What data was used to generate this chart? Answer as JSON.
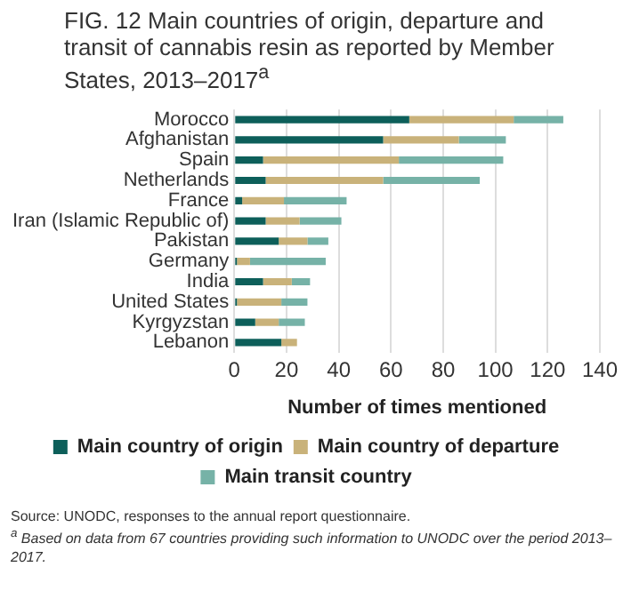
{
  "chart_data": {
    "type": "bar",
    "orientation": "horizontal",
    "stacked": true,
    "title": "FIG. 12 Main countries of origin, departure and transit of cannabis resin as reported by Member States, 2013–2017$^{a}$",
    "xlabel": "Number of times mentioned",
    "categories": [
      "Morocco",
      "Afghanistan",
      "Spain",
      "Netherlands",
      "France",
      "Iran (Islamic Republic of)",
      "Pakistan",
      "Germany",
      "India",
      "United States",
      "Kyrgyzstan",
      "Lebanon"
    ],
    "series": [
      {
        "name": "Main country of origin",
        "color": "#0d5f5a",
        "values": [
          67,
          57,
          11,
          12,
          3,
          12,
          17,
          1,
          11,
          1,
          8,
          18
        ]
      },
      {
        "name": "Main country of departure",
        "color": "#c9b27a",
        "values": [
          40,
          29,
          52,
          45,
          16,
          13,
          11,
          5,
          11,
          17,
          9,
          6
        ]
      },
      {
        "name": "Main transit country",
        "color": "#76b2a7",
        "values": [
          19,
          18,
          40,
          37,
          24,
          16,
          8,
          29,
          7,
          10,
          10,
          0
        ]
      }
    ],
    "xlim": [
      0,
      140
    ],
    "xticks": [
      0,
      20,
      40,
      60,
      80,
      100,
      120,
      140
    ],
    "grid": "x",
    "legend": "bottom",
    "annotations": [
      "Source: UNODC, responses to the annual report questionnaire.",
      "$^{a}$ Based on data from 67 countries providing such information to UNODC over the period 2013–2017."
    ]
  }
}
